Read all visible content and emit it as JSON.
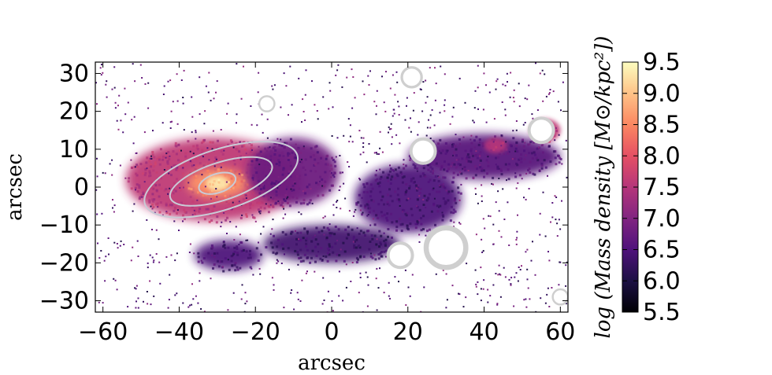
{
  "chart_data": {
    "type": "heatmap",
    "title": "",
    "xlabel": "arcsec",
    "ylabel": "arcsec",
    "xlim": [
      -62,
      62
    ],
    "ylim": [
      -33,
      33
    ],
    "xticks": [
      -60,
      -40,
      -20,
      0,
      20,
      40,
      60
    ],
    "yticks": [
      -30,
      -20,
      -10,
      0,
      10,
      20,
      30
    ],
    "xtick_labels": [
      "−60",
      "−40",
      "−20",
      "0",
      "20",
      "40",
      "60"
    ],
    "ytick_labels": [
      "−30",
      "−20",
      "−10",
      "0",
      "10",
      "20",
      "30"
    ],
    "colormap": "magma",
    "colorbar": {
      "label": "log (Mass density [M⊙/kpc²])",
      "range": [
        5.5,
        9.5
      ],
      "ticks": [
        5.5,
        6.0,
        6.5,
        7.0,
        7.5,
        8.0,
        8.5,
        9.0,
        9.5
      ],
      "tick_labels": [
        "5.5",
        "6.0",
        "6.5",
        "7.0",
        "7.5",
        "8.0",
        "8.5",
        "9.0",
        "9.5"
      ],
      "colors": [
        "#000004",
        "#1c1044",
        "#4f127b",
        "#812581",
        "#b5367a",
        "#e55064",
        "#fb8761",
        "#fec287",
        "#fcfdbf"
      ]
    },
    "regions": [
      {
        "name": "main-body",
        "cx": -31,
        "cy": 2,
        "rx": 23,
        "ry": 11,
        "level": 7.6
      },
      {
        "name": "bulge",
        "cx": -30,
        "cy": 1,
        "rx": 8,
        "ry": 4,
        "level": 8.6
      },
      {
        "name": "core",
        "cx": -30,
        "cy": 1,
        "rx": 3,
        "ry": 2,
        "level": 9.3
      },
      {
        "name": "tail-east",
        "cx": 40,
        "cy": 8,
        "rx": 20,
        "ry": 6,
        "level": 6.6
      },
      {
        "name": "tail-mid",
        "cx": 20,
        "cy": -3,
        "rx": 14,
        "ry": 9,
        "level": 6.5
      },
      {
        "name": "tail-south",
        "cx": 0,
        "cy": -15,
        "rx": 18,
        "ry": 5,
        "level": 6.4
      },
      {
        "name": "inner-disk",
        "cx": -10,
        "cy": 4,
        "rx": 12,
        "ry": 9,
        "level": 6.8
      },
      {
        "name": "south-arm",
        "cx": -27,
        "cy": -18,
        "rx": 9,
        "ry": 4,
        "level": 6.5
      },
      {
        "name": "knot-ne",
        "cx": 56,
        "cy": 15,
        "rx": 4,
        "ry": 3,
        "level": 7.6
      },
      {
        "name": "knot-e",
        "cx": 43,
        "cy": 11,
        "rx": 3,
        "ry": 2,
        "level": 7.5
      }
    ],
    "contour_levels": [
      {
        "cx": -29,
        "cy": 2,
        "rx": 21,
        "ry": 8,
        "level": 8.0
      },
      {
        "cx": -29,
        "cy": 1.5,
        "rx": 14,
        "ry": 5,
        "level": 8.5
      },
      {
        "cx": -30,
        "cy": 1,
        "rx": 5,
        "ry": 2.5,
        "level": 9.0
      }
    ],
    "masked_stars": [
      {
        "x": 21,
        "y": 29,
        "r": 1.3
      },
      {
        "x": -17,
        "y": 22,
        "r": 1.0
      },
      {
        "x": 55,
        "y": 15,
        "r": 1.6
      },
      {
        "x": 24,
        "y": 9.5,
        "r": 1.6
      },
      {
        "x": 18,
        "y": -18,
        "r": 1.6
      },
      {
        "x": 30,
        "y": -16,
        "r": 2.6
      },
      {
        "x": 60,
        "y": -29,
        "r": 1.0
      }
    ]
  }
}
